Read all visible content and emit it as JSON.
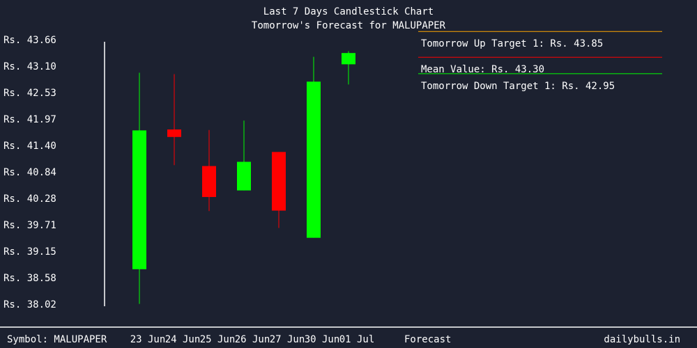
{
  "chart_data": {
    "type": "candlestick",
    "title": "Last 7 Days Candlestick Chart",
    "subtitle": "Tomorrow's Forecast for MALUPAPER",
    "y_tick_labels": [
      "Rs. 43.66",
      "Rs. 43.10",
      "Rs. 42.53",
      "Rs. 41.97",
      "Rs. 41.40",
      "Rs. 40.84",
      "Rs. 40.28",
      "Rs. 39.71",
      "Rs. 39.15",
      "Rs. 38.58",
      "Rs. 38.02"
    ],
    "y_tick_values": [
      43.66,
      43.1,
      42.53,
      41.97,
      41.4,
      40.84,
      40.28,
      39.71,
      39.15,
      38.58,
      38.02
    ],
    "ylim": [
      38.02,
      43.66
    ],
    "categories": [
      "23 Jun",
      "24 Jun",
      "25 Jun",
      "26 Jun",
      "27 Jun",
      "30 Jun",
      "01 Jul"
    ],
    "candles": [
      {
        "date": "23 Jun",
        "open": 38.78,
        "high": 42.97,
        "low": 38.04,
        "close": 41.74,
        "color": "#00ff00"
      },
      {
        "date": "24 Jun",
        "open": 41.76,
        "high": 42.94,
        "low": 41.0,
        "close": 41.6,
        "color": "#ff0000"
      },
      {
        "date": "25 Jun",
        "open": 40.98,
        "high": 41.75,
        "low": 40.02,
        "close": 40.32,
        "color": "#ff0000"
      },
      {
        "date": "26 Jun",
        "open": 40.46,
        "high": 41.95,
        "low": 40.46,
        "close": 41.07,
        "color": "#00ff00"
      },
      {
        "date": "27 Jun",
        "open": 41.28,
        "high": 41.28,
        "low": 39.66,
        "close": 40.03,
        "color": "#ff0000"
      },
      {
        "date": "30 Jun",
        "open": 39.45,
        "high": 43.31,
        "low": 39.45,
        "close": 42.78,
        "color": "#00ff00"
      },
      {
        "date": "01 Jul",
        "open": 43.15,
        "high": 43.43,
        "low": 42.72,
        "close": 43.39,
        "color": "#00ff00"
      }
    ],
    "forecast_label": "Forecast",
    "forecast": [
      {
        "label": "Tomorrow Up Target 1: Rs. 43.85",
        "value": 43.85,
        "color": "#ffa500"
      },
      {
        "label": "Mean Value: Rs. 43.30",
        "value": 43.3,
        "color": "#ff0000"
      },
      {
        "label": "Tomorrow Down Target 1: Rs. 42.95",
        "value": 42.95,
        "color": "#00ff00"
      }
    ]
  },
  "footer": {
    "symbol": "Symbol: MALUPAPER",
    "site": "dailybulls.in"
  }
}
